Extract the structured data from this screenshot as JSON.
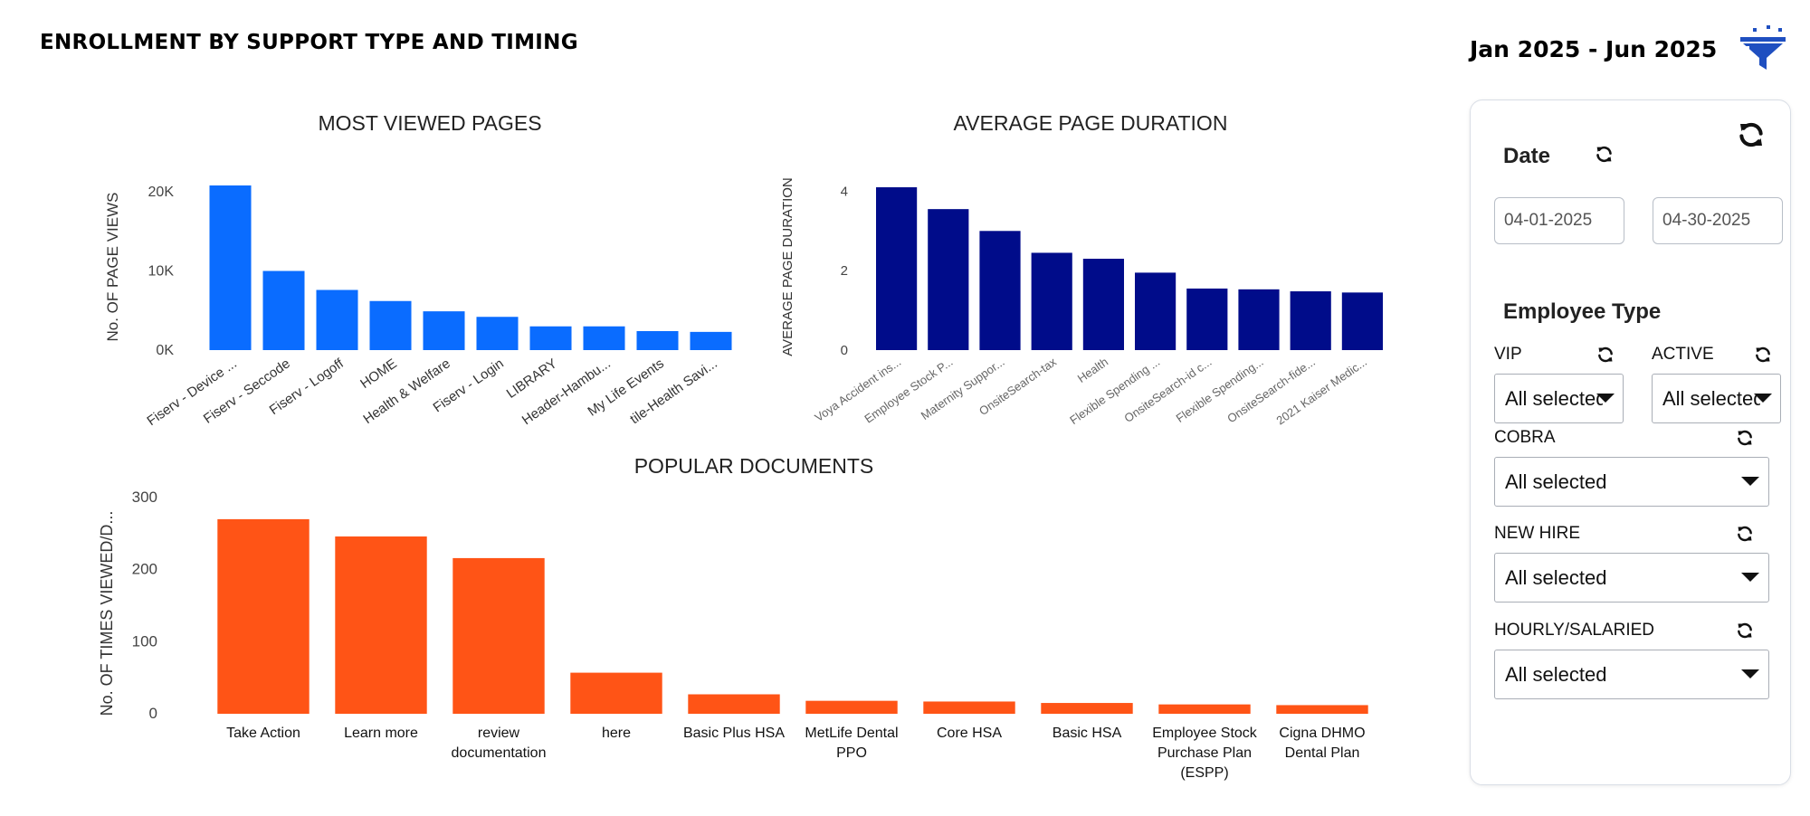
{
  "header": {
    "title": "ENROLLMENT BY SUPPORT TYPE AND TIMING",
    "date_range": "Jan 2025 - Jun 2025"
  },
  "colors": {
    "views_bar": "#0a6cff",
    "duration_bar": "#000c8a",
    "documents_bar": "#ff5416",
    "filter_icon": "#1f4fc0"
  },
  "chart_data": [
    {
      "type": "bar",
      "title": "MOST VIEWED PAGES",
      "xlabel": "",
      "ylabel": "No. OF PAGE VIEWS",
      "categories": [
        "Fiserv - Device ...",
        "Fiserv - Seccode",
        "Fiserv - Logoff",
        "HOME",
        "Health & Welfare",
        "Fiserv - Login",
        "LIBRARY",
        "Header-Hambu...",
        "My Life Events",
        "tile-Health Savi..."
      ],
      "values": [
        20800,
        10000,
        7600,
        6200,
        4900,
        4200,
        3000,
        3000,
        2400,
        2300
      ],
      "ylim": [
        0,
        20800
      ],
      "yticks": [
        0,
        10000,
        20000
      ],
      "ytick_labels": [
        "0K",
        "10K",
        "20K"
      ],
      "grid": false,
      "tick_rotation": -35
    },
    {
      "type": "bar",
      "title": "AVERAGE PAGE DURATION",
      "xlabel": "",
      "ylabel": "AVERAGE PAGE DURATION",
      "categories": [
        "Voya Accident ins...",
        "Employee Stock P...",
        "Maternity Suppor...",
        "OnsiteSearch-tax",
        "Health",
        "Flexible Spending ...",
        "OnsiteSearch-id c...",
        "Flexible Spending...",
        "OnsiteSearch-fide...",
        "2021 Kaiser Medic..."
      ],
      "values": [
        4.1,
        3.55,
        3.0,
        2.45,
        2.3,
        1.95,
        1.55,
        1.53,
        1.48,
        1.45
      ],
      "ylim": [
        0,
        4.1
      ],
      "yticks": [
        0,
        2,
        4
      ],
      "ytick_labels": [
        "0",
        "2",
        "4"
      ],
      "grid": false,
      "tick_rotation": -35
    },
    {
      "type": "bar",
      "title": "POPULAR DOCUMENTS",
      "xlabel": "",
      "ylabel": "No. OF TIMES VIEWED/D...",
      "categories": [
        "Take Action",
        "Learn more",
        "review documentation",
        "here",
        "Basic Plus HSA",
        "MetLife Dental PPO",
        "Core HSA",
        "Basic HSA",
        "Employee Stock Purchase Plan (ESPP)",
        "Cigna DHMO Dental Plan"
      ],
      "values": [
        270,
        246,
        216,
        57,
        27,
        18,
        17,
        15,
        13,
        12
      ],
      "ylim": [
        0,
        300
      ],
      "yticks": [
        0,
        100,
        200,
        300
      ],
      "ytick_labels": [
        "0",
        "100",
        "200",
        "300"
      ],
      "grid": false,
      "tick_rotation": 0
    }
  ],
  "filters": {
    "date": {
      "label": "Date",
      "start": "04-01-2025",
      "end": "04-30-2025"
    },
    "employee_type": {
      "label": "Employee Type",
      "vip": {
        "label": "VIP",
        "value": "All selected"
      },
      "active": {
        "label": "ACTIVE",
        "value": "All selected"
      },
      "cobra": {
        "label": "COBRA",
        "value": "All selected"
      },
      "new_hire": {
        "label": "NEW HIRE",
        "value": "All selected"
      },
      "hourly_salaried": {
        "label": "HOURLY/SALARIED",
        "value": "All selected"
      }
    }
  }
}
